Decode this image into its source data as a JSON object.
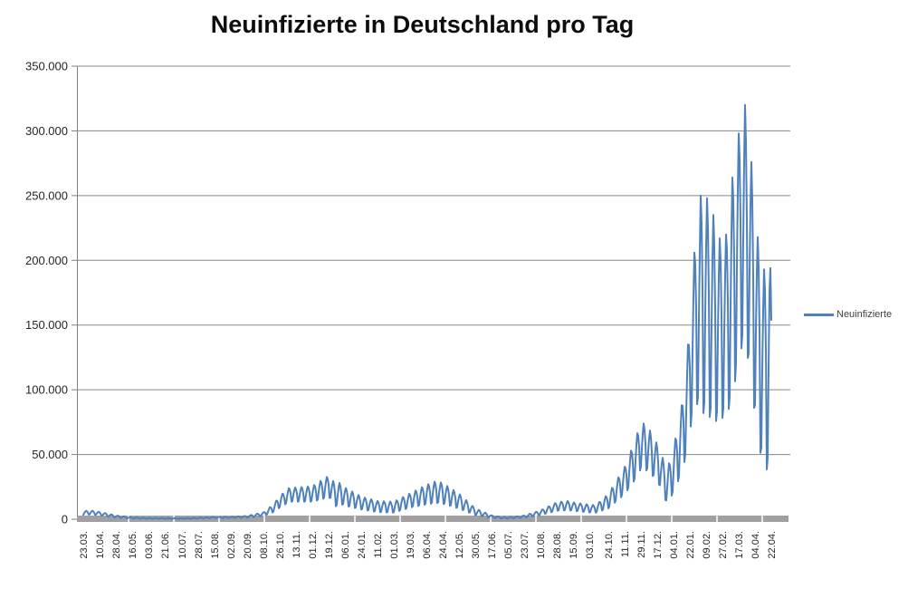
{
  "chart_data": {
    "type": "line",
    "title": "Neuinfizierte in Deutschland pro Tag",
    "grid": true,
    "legend": {
      "position": "right",
      "entries": [
        "Neuinfizierte"
      ]
    },
    "y_axis": {
      "min": 0,
      "max": 350000,
      "step": 50000,
      "tick_labels": [
        "350.000",
        "300.000",
        "250.000",
        "200.000",
        "150.000",
        "100.000",
        "50.000",
        "0"
      ]
    },
    "x_axis": {
      "labels": [
        "23.03.",
        "10.04.",
        "28.04.",
        "16.05.",
        "03.06.",
        "21.06.",
        "10.07.",
        "28.07.",
        "15.08.",
        "02.09.",
        "20.09.",
        "08.10.",
        "26.10.",
        "13.11.",
        "01.12.",
        "19.12.",
        "06.01.",
        "24.01.",
        "11.02.",
        "01.03.",
        "19.03.",
        "06.04.",
        "24.04.",
        "12.05.",
        "30.05.",
        "17.06.",
        "05.07.",
        "23.07.",
        "10.08.",
        "28.08.",
        "15.09.",
        "03.10.",
        "24.10.",
        "11.11.",
        "29.11.",
        "17.12.",
        "04.01.",
        "22.01.",
        "09.02.",
        "27.02.",
        "17.03.",
        "04.04.",
        "22.04."
      ],
      "label_day_offsets": [
        0,
        18,
        36,
        54,
        72,
        90,
        109,
        127,
        145,
        163,
        181,
        199,
        217,
        235,
        253,
        271,
        289,
        307,
        325,
        343,
        361,
        379,
        397,
        415,
        433,
        451,
        469,
        487,
        505,
        523,
        541,
        559,
        580,
        598,
        616,
        634,
        652,
        670,
        688,
        706,
        724,
        742,
        760
      ],
      "total_days": 760,
      "minor_tick_every_days": 50
    },
    "series": [
      {
        "name": "Neuinfizierte",
        "color": "#4F81BD",
        "encoding": "daily values; value(day) = base(day) + amp(day) * weekly[day mod 7], keyframes [day, base, amp] linearly interpolated; day 0 = Monday 23.03.",
        "weekly": [
          -0.9,
          -0.1,
          0.55,
          1.0,
          0.75,
          0.15,
          -1.0
        ],
        "keyframes": [
          [
            0,
            4800,
            1600
          ],
          [
            9,
            5200,
            1400
          ],
          [
            18,
            4300,
            1300
          ],
          [
            36,
            2100,
            900
          ],
          [
            54,
            1000,
            500
          ],
          [
            72,
            650,
            320
          ],
          [
            90,
            560,
            280
          ],
          [
            109,
            480,
            240
          ],
          [
            127,
            820,
            360
          ],
          [
            145,
            1300,
            500
          ],
          [
            163,
            1350,
            500
          ],
          [
            181,
            1900,
            700
          ],
          [
            199,
            3900,
            1400
          ],
          [
            210,
            8500,
            3000
          ],
          [
            217,
            13500,
            4500
          ],
          [
            228,
            19000,
            5500
          ],
          [
            235,
            19000,
            5500
          ],
          [
            253,
            19500,
            6000
          ],
          [
            264,
            23000,
            7500
          ],
          [
            271,
            25500,
            8000
          ],
          [
            279,
            18500,
            8500
          ],
          [
            283,
            20000,
            8000
          ],
          [
            289,
            17500,
            7000
          ],
          [
            307,
            12500,
            5000
          ],
          [
            325,
            9800,
            4300
          ],
          [
            343,
            9300,
            4200
          ],
          [
            361,
            14500,
            5500
          ],
          [
            379,
            19000,
            7500
          ],
          [
            390,
            21000,
            8500
          ],
          [
            397,
            20000,
            8000
          ],
          [
            415,
            14000,
            5800
          ],
          [
            433,
            5800,
            2600
          ],
          [
            451,
            2000,
            1000
          ],
          [
            462,
            1100,
            550
          ],
          [
            469,
            950,
            480
          ],
          [
            487,
            2000,
            850
          ],
          [
            505,
            5000,
            1800
          ],
          [
            523,
            9800,
            3300
          ],
          [
            535,
            10500,
            3600
          ],
          [
            541,
            9800,
            3300
          ],
          [
            559,
            8200,
            3000
          ],
          [
            566,
            8000,
            2900
          ],
          [
            580,
            14000,
            5600
          ],
          [
            598,
            30000,
            10500
          ],
          [
            609,
            45000,
            15000
          ],
          [
            616,
            57000,
            18000
          ],
          [
            623,
            55000,
            17500
          ],
          [
            634,
            44000,
            14000
          ],
          [
            645,
            25000,
            13500
          ],
          [
            652,
            38000,
            17000
          ],
          [
            661,
            62000,
            26000
          ],
          [
            668,
            95000,
            40000
          ],
          [
            675,
            150000,
            56000
          ],
          [
            682,
            166000,
            84000
          ],
          [
            689,
            165000,
            83000
          ],
          [
            696,
            155000,
            80000
          ],
          [
            703,
            147000,
            70000
          ],
          [
            710,
            150000,
            70000
          ],
          [
            717,
            178000,
            86000
          ],
          [
            724,
            212000,
            86000
          ],
          [
            731,
            230000,
            90000
          ],
          [
            738,
            190000,
            86000
          ],
          [
            745,
            140000,
            78000
          ],
          [
            752,
            115000,
            78000
          ],
          [
            758,
            128000,
            88000
          ],
          [
            760,
            100000,
            72000
          ]
        ],
        "notable_values": {
          "first_wave_peak_apr2020": 6500,
          "second_wave_peak_dec2020": 33000,
          "third_wave_peak_apr2021": 29500,
          "delta_wave_peak_nov2021": 75000,
          "omicron_peak_mar2022": 319000,
          "easter_dip_apr2022": 41000,
          "last_value_22_04_2022": 150000
        }
      }
    ]
  },
  "colors": {
    "background": "#FFFFFF",
    "grid": "#878787",
    "axis": "#808080",
    "axis_bar": "#A0A0A0",
    "tick_text": "#262626",
    "title_text": "#0D0D0D",
    "legend_text": "#3F3F3F",
    "series": "#4F81BD"
  }
}
